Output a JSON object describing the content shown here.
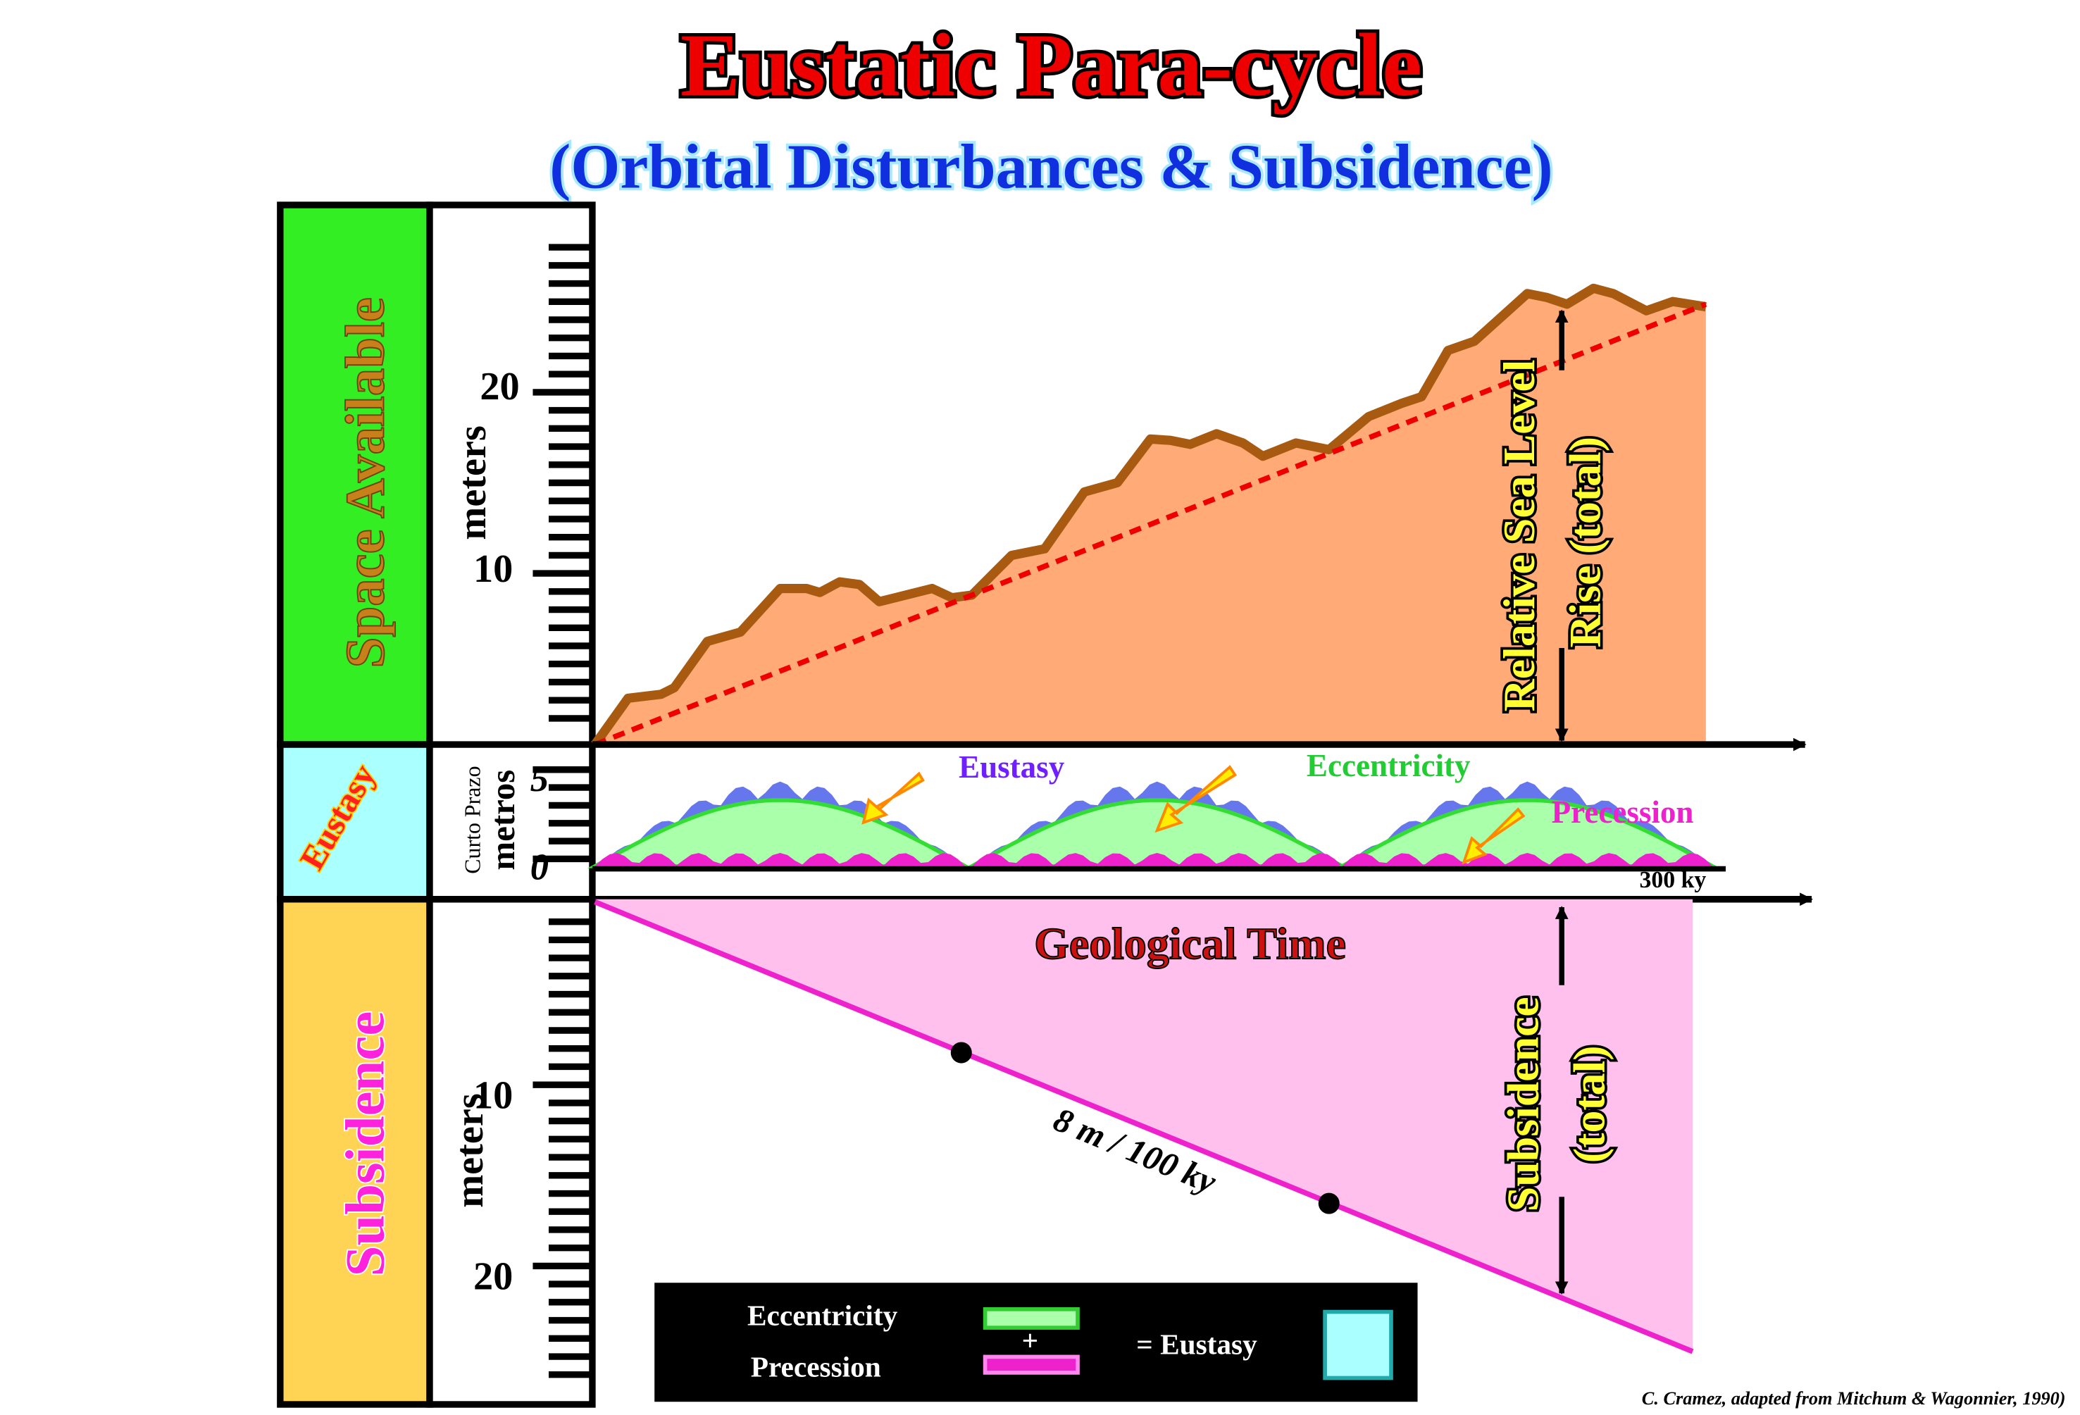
{
  "title": "Eustatic Para-cycle",
  "subtitle": "(Orbital Disturbances & Subsidence)",
  "columns": {
    "space_available": "Space Available",
    "eustasy": "Eustasy",
    "subsidence": "Subsidence"
  },
  "upper_scale": {
    "unit": "meters",
    "ticks": [
      "20",
      "10"
    ]
  },
  "eustasy_scale": {
    "units": [
      "Curto Prazo",
      "metros"
    ],
    "ticks": [
      "5",
      "0"
    ]
  },
  "lower_scale": {
    "unit": "meters",
    "ticks": [
      "10",
      "20"
    ]
  },
  "labels": {
    "eustasy": "Eustasy",
    "eccentricity": "Eccentricity",
    "precession": "Precession",
    "time_mark": "300 ky",
    "geological_time": "Geological Time",
    "relative_sea_level": [
      "Relative Sea Level",
      "Rise (total)"
    ],
    "subsidence_total": [
      "Subsidence",
      "(total)"
    ],
    "rate": "8 m / 100 ky"
  },
  "legend": {
    "eccentricity": "Eccentricity",
    "precession": "Precession",
    "plus": "+",
    "equals": "= Eustasy"
  },
  "credit": "C. Cramez, adapted from Mitchum & Wagonnier, 1990)"
}
